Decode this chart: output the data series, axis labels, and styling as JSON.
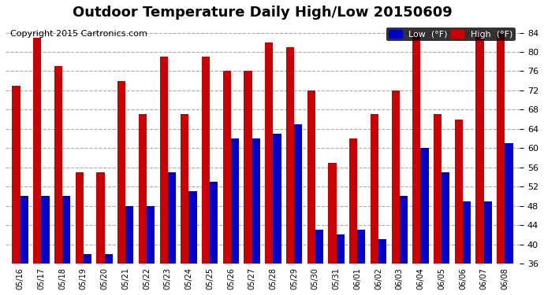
{
  "title": "Outdoor Temperature Daily High/Low 20150609",
  "copyright": "Copyright 2015 Cartronics.com",
  "ylim": [
    36.0,
    86.0
  ],
  "yticks": [
    36.0,
    40.0,
    44.0,
    48.0,
    52.0,
    56.0,
    60.0,
    64.0,
    68.0,
    72.0,
    76.0,
    80.0,
    84.0
  ],
  "dates": [
    "05/16",
    "05/17",
    "05/18",
    "05/19",
    "05/20",
    "05/21",
    "05/22",
    "05/23",
    "05/24",
    "05/25",
    "05/26",
    "05/27",
    "05/28",
    "05/29",
    "05/30",
    "05/31",
    "06/01",
    "06/02",
    "06/03",
    "06/04",
    "06/05",
    "06/06",
    "06/07",
    "06/08"
  ],
  "highs": [
    73,
    83,
    77,
    55,
    55,
    74,
    67,
    79,
    67,
    79,
    76,
    76,
    82,
    81,
    72,
    57,
    62,
    67,
    72,
    84,
    67,
    66,
    84,
    84
  ],
  "lows": [
    50,
    50,
    50,
    38,
    38,
    48,
    48,
    55,
    51,
    53,
    62,
    62,
    63,
    65,
    43,
    42,
    43,
    41,
    50,
    60,
    55,
    49,
    49,
    61
  ],
  "bar_color_low": "#0000cc",
  "bar_color_high": "#cc0000",
  "background_color": "#ffffff",
  "grid_color": "#aaaaaa",
  "title_fontsize": 13,
  "copyright_fontsize": 8,
  "legend_low_label": "Low  (°F)",
  "legend_high_label": "High  (°F)",
  "bar_width": 0.38
}
